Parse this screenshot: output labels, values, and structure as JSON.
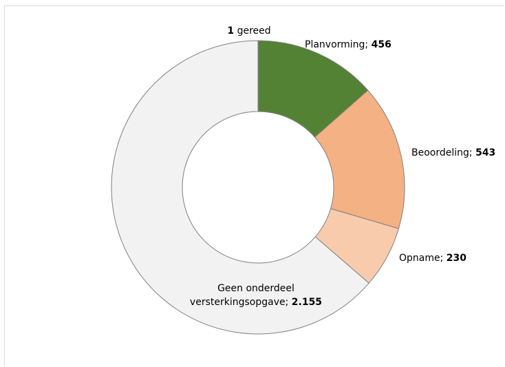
{
  "chart_data": {
    "type": "pie",
    "variant": "donut",
    "title": "",
    "slices": [
      {
        "label": "gereed",
        "value": 1,
        "color": "#f2f2f2"
      },
      {
        "label": "Planvorming",
        "value": 456,
        "color": "#548235"
      },
      {
        "label": "Beoordeling",
        "value": 543,
        "color": "#f4b183"
      },
      {
        "label": "Opname",
        "value": 230,
        "color": "#f8cbad"
      },
      {
        "label": "Geen onderdeel versterkingsopgave",
        "value": 2155,
        "color": "#f2f2f2"
      }
    ],
    "labels": [
      {
        "name": "1",
        "value": "1",
        "suffix": "gereed",
        "value_first": true
      },
      {
        "name": "Planvorming; ",
        "value": "456"
      },
      {
        "name": "Beoordeling; ",
        "value": "543"
      },
      {
        "name": "Opname; ",
        "value": "230"
      },
      {
        "name_line1": "Geen onderdeel",
        "name": "versterkingsopgave; ",
        "value": "2.155"
      }
    ],
    "slice_border_color": "#7f7f7f",
    "legend": "none",
    "start_angle_deg": 0,
    "direction": "clockwise"
  }
}
